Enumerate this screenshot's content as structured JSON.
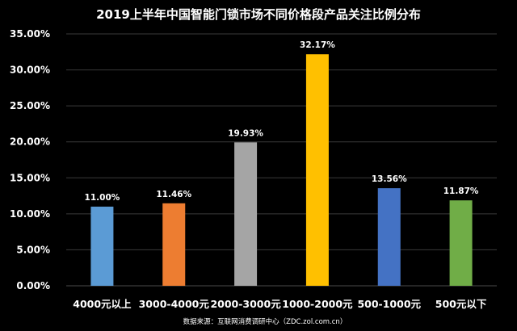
{
  "chart_data": {
    "type": "bar",
    "title": "2019上半年中国智能门锁市场不同价格段产品关注比例分布",
    "categories": [
      "4000元以上",
      "3000-4000元",
      "2000-3000元",
      "1000-2000元",
      "500-1000元",
      "500元以下"
    ],
    "values": [
      11.0,
      11.46,
      19.93,
      32.17,
      13.56,
      11.87
    ],
    "data_labels": [
      "11.00%",
      "11.46%",
      "19.93%",
      "32.17%",
      "13.56%",
      "11.87%"
    ],
    "bar_colors": [
      "#5b9bd5",
      "#ed7d31",
      "#a5a5a5",
      "#ffc000",
      "#4472c4",
      "#70ad47"
    ],
    "ylim": [
      0,
      35
    ],
    "yticks": [
      0,
      5,
      10,
      15,
      20,
      25,
      30,
      35
    ],
    "ytick_labels": [
      "0.00%",
      "5.00%",
      "10.00%",
      "15.00%",
      "20.00%",
      "25.00%",
      "30.00%",
      "35.00%"
    ],
    "grid": true,
    "xlabel": "",
    "ylabel": "",
    "source_note": "数据来源：互联网消费调研中心（ZDC.zol.com.cn）",
    "background_color": "#000000",
    "text_color": "#ffffff",
    "grid_color": "#3a3a3a"
  }
}
